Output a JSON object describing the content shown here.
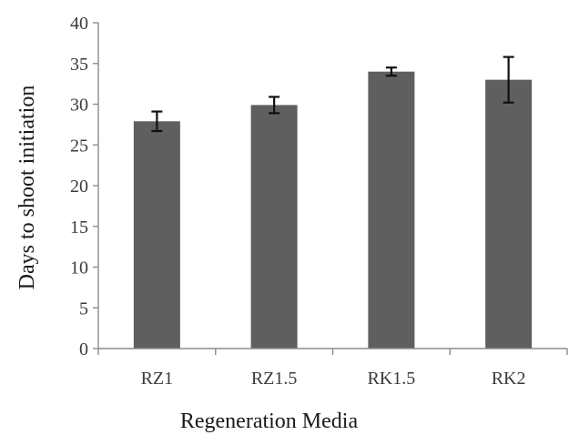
{
  "chart_data": {
    "type": "bar",
    "categories": [
      "RZ1",
      "RZ1.5",
      "RK1.5",
      "RK2"
    ],
    "values": [
      27.9,
      29.9,
      34.0,
      33.0
    ],
    "error": [
      1.2,
      1.0,
      0.5,
      2.8
    ],
    "xlabel": "Regeneration Media",
    "ylabel": "Days to shoot initiation",
    "ylim": [
      0,
      40
    ],
    "yticks": [
      0,
      5,
      10,
      15,
      20,
      25,
      30,
      35,
      40
    ],
    "grid": false,
    "legend": "none",
    "bar_color": "#5f5f5f",
    "error_color": "#111111"
  }
}
